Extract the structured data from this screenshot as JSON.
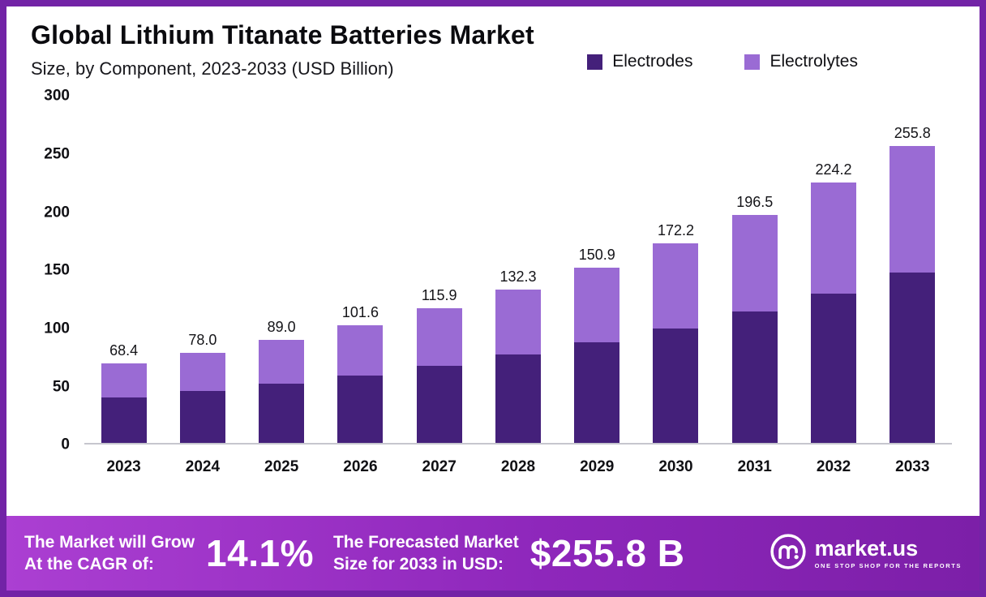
{
  "header": {
    "title": "Global Lithium Titanate Batteries Market",
    "subtitle": "Size, by Component, 2023-2033 (USD Billion)"
  },
  "legend": {
    "items": [
      {
        "label": "Electrodes",
        "color": "#44207a"
      },
      {
        "label": "Electrolytes",
        "color": "#9a6bd4"
      }
    ]
  },
  "chart_data": {
    "type": "bar",
    "stacked": true,
    "title": "Global Lithium Titanate Batteries Market Size, by Component, 2023-2033 (USD Billion)",
    "xlabel": "",
    "ylabel": "USD Billion",
    "categories": [
      "2023",
      "2024",
      "2025",
      "2026",
      "2027",
      "2028",
      "2029",
      "2030",
      "2031",
      "2032",
      "2033"
    ],
    "series": [
      {
        "name": "Electrodes",
        "color": "#44207a",
        "values": [
          39.3,
          44.9,
          51.2,
          58.4,
          66.6,
          76.1,
          86.8,
          99.0,
          113.0,
          128.9,
          147.1
        ]
      },
      {
        "name": "Electrolytes",
        "color": "#9a6bd4",
        "values": [
          29.1,
          33.1,
          37.8,
          43.2,
          49.3,
          56.2,
          64.1,
          73.2,
          83.5,
          95.3,
          108.7
        ]
      }
    ],
    "totals": [
      68.4,
      78.0,
      89.0,
      101.6,
      115.9,
      132.3,
      150.9,
      172.2,
      196.5,
      224.2,
      255.8
    ],
    "totals_display": [
      "68.4",
      "78.0",
      "89.0",
      "101.6",
      "115.9",
      "132.3",
      "150.9",
      "172.2",
      "196.5",
      "224.2",
      "255.8"
    ],
    "ylim": [
      0,
      300
    ],
    "yticks": [
      0,
      50,
      100,
      150,
      200,
      250,
      300
    ],
    "grid": false,
    "legend_position": "top-right"
  },
  "footer": {
    "cagr_label_line1": "The Market will Grow",
    "cagr_label_line2": "At the CAGR of:",
    "cagr_value": "14.1%",
    "forecast_label_line1": "The Forecasted Market",
    "forecast_label_line2": "Size for 2033 in USD:",
    "forecast_value": "$255.8 B",
    "brand_name": "market.us",
    "brand_tagline": "ONE STOP SHOP FOR THE REPORTS"
  },
  "colors": {
    "frame": "#7223a6",
    "banner_gradient_start": "#ab3fd2",
    "banner_gradient_end": "#7c1fa8",
    "electrodes": "#44207a",
    "electrolytes": "#9a6bd4"
  }
}
